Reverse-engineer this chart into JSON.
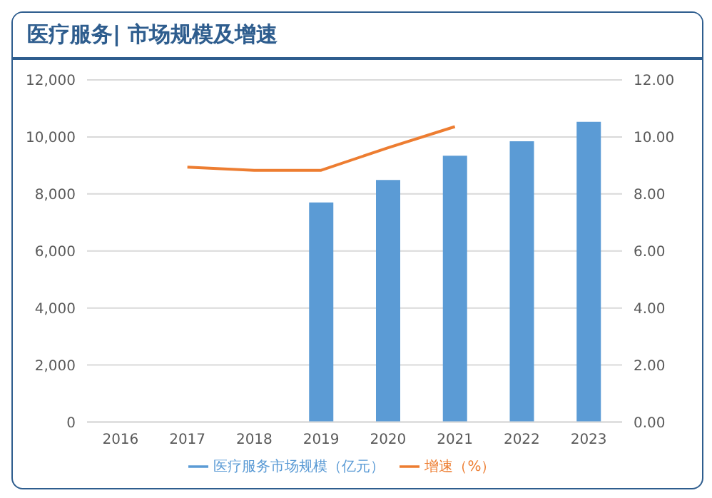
{
  "chart_data": {
    "type": "bar",
    "title": "医疗服务| 市场规模及增速",
    "categories": [
      "2016",
      "2017",
      "2018",
      "2019",
      "2020",
      "2021",
      "2022",
      "2023"
    ],
    "series": [
      {
        "name": "医疗服务市场规模（亿元）",
        "color": "#5b9bd5",
        "values": [
          null,
          null,
          null,
          7700,
          8490,
          9340,
          9850,
          10530
        ]
      },
      {
        "name": "增速（%）",
        "type": "line",
        "axis": "y2",
        "color": "#ed7d31",
        "values": [
          null,
          8.94,
          8.83,
          8.83,
          9.62,
          10.36,
          null,
          null
        ]
      }
    ],
    "ylim": [
      0,
      12000
    ],
    "yticks": [
      {
        "value": 0,
        "label": "0"
      },
      {
        "value": 2000,
        "label": "2,000"
      },
      {
        "value": 4000,
        "label": "4,000"
      },
      {
        "value": 6000,
        "label": "6,000"
      },
      {
        "value": 8000,
        "label": "8,000"
      },
      {
        "value": 10000,
        "label": "10,000"
      },
      {
        "value": 12000,
        "label": "12,000"
      }
    ],
    "y2lim": [
      0,
      12
    ],
    "y2ticks": [
      {
        "value": 0,
        "label": "0.00"
      },
      {
        "value": 2,
        "label": "2.00"
      },
      {
        "value": 4,
        "label": "4.00"
      },
      {
        "value": 6,
        "label": "6.00"
      },
      {
        "value": 8,
        "label": "8.00"
      },
      {
        "value": 10,
        "label": "10.00"
      },
      {
        "value": 12,
        "label": "12.00"
      }
    ],
    "grid": "y",
    "legend": "bottom",
    "marker": "none"
  }
}
